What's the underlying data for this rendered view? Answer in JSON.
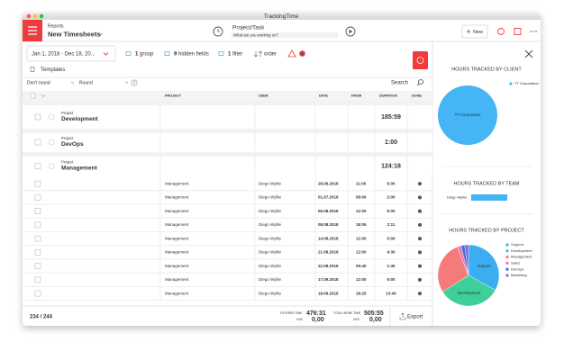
{
  "window": {
    "title": "TrackingTime"
  },
  "header": {
    "section": "Reports",
    "title": "New Timesheets",
    "task_label": "Project/Task",
    "task_placeholder": "What are you working on?",
    "new_button": "New"
  },
  "toolbar": {
    "date_range": "Jan 1, 2018 - Dec 18, 20...",
    "items": [
      {
        "count": "1",
        "label": "group"
      },
      {
        "count": "9",
        "label": "hidden fields"
      },
      {
        "count": "1",
        "label": "filter"
      }
    ],
    "order": "order",
    "alert_count": "1",
    "templates": "Templates"
  },
  "filters": {
    "rounding": "Don't round",
    "round": "Round",
    "help": "?",
    "search": "Search"
  },
  "table": {
    "columns": [
      "PROJECT",
      "USER",
      "DATE",
      "FROM",
      "DURATION",
      "DONE"
    ],
    "groups": [
      {
        "kicker": "Project",
        "name": "Development",
        "total": "185:59"
      },
      {
        "kicker": "Project",
        "name": "DevOps",
        "total": "1:00"
      },
      {
        "kicker": "Project",
        "name": "Management",
        "total": "124:18"
      }
    ],
    "rows": [
      [
        "Management",
        "Diego Wyllie",
        "28.06.2018",
        "11:00",
        "5:00"
      ],
      [
        "Management",
        "Diego Wyllie",
        "01.07.2018",
        "08:00",
        "2:00"
      ],
      [
        "Management",
        "Diego Wyllie",
        "06.08.2018",
        "12:00",
        "5:00"
      ],
      [
        "Management",
        "Diego Wyllie",
        "08.08.2018",
        "18:05",
        "2:11"
      ],
      [
        "Management",
        "Diego Wyllie",
        "14.08.2018",
        "12:00",
        "5:00"
      ],
      [
        "Management",
        "Diego Wyllie",
        "21.08.2018",
        "12:00",
        "4:30"
      ],
      [
        "Management",
        "Diego Wyllie",
        "22.08.2018",
        "05:40",
        "1:40"
      ],
      [
        "Management",
        "Diego Wyllie",
        "17.09.2018",
        "12:00",
        "5:00"
      ],
      [
        "Management",
        "Diego Wyllie",
        "18.09.2018",
        "18:25",
        "13:40"
      ]
    ]
  },
  "footer": {
    "count": "234 / 244",
    "filtered_label": "FILTERED TIME",
    "filtered_time": "476:31",
    "filtered_currency": "USD",
    "filtered_amount": "0,00",
    "total_label": "TOTAL WORK TIME",
    "total_time": "505:55",
    "total_currency": "USD",
    "total_amount": "0,00",
    "export": "Export"
  },
  "panel": {
    "client": {
      "title": "HOURS TRACKED BY CLIENT",
      "slices": [
        {
          "name": "TT Corporation",
          "value": 100,
          "color": "#45b5f5"
        }
      ]
    },
    "team": {
      "title": "HOURS TRACKED BY TEAM",
      "bars": [
        {
          "name": "Diego Wyllie",
          "value": 100,
          "color": "#45b5f5"
        }
      ]
    },
    "project": {
      "title": "HOURS TRACKED BY PROJECT",
      "slices": [
        {
          "name": "Support",
          "value": 33,
          "color": "#3aaef0"
        },
        {
          "name": "Development",
          "value": 33,
          "color": "#3ecf9b"
        },
        {
          "name": "Management",
          "value": 28,
          "color": "#f57a7a"
        },
        {
          "name": "Sales",
          "value": 2,
          "color": "#ef75ad"
        },
        {
          "name": "DevOps",
          "value": 2,
          "color": "#3d6fd9"
        },
        {
          "name": "Marketing",
          "value": 2,
          "color": "#8b66d4"
        }
      ]
    }
  }
}
